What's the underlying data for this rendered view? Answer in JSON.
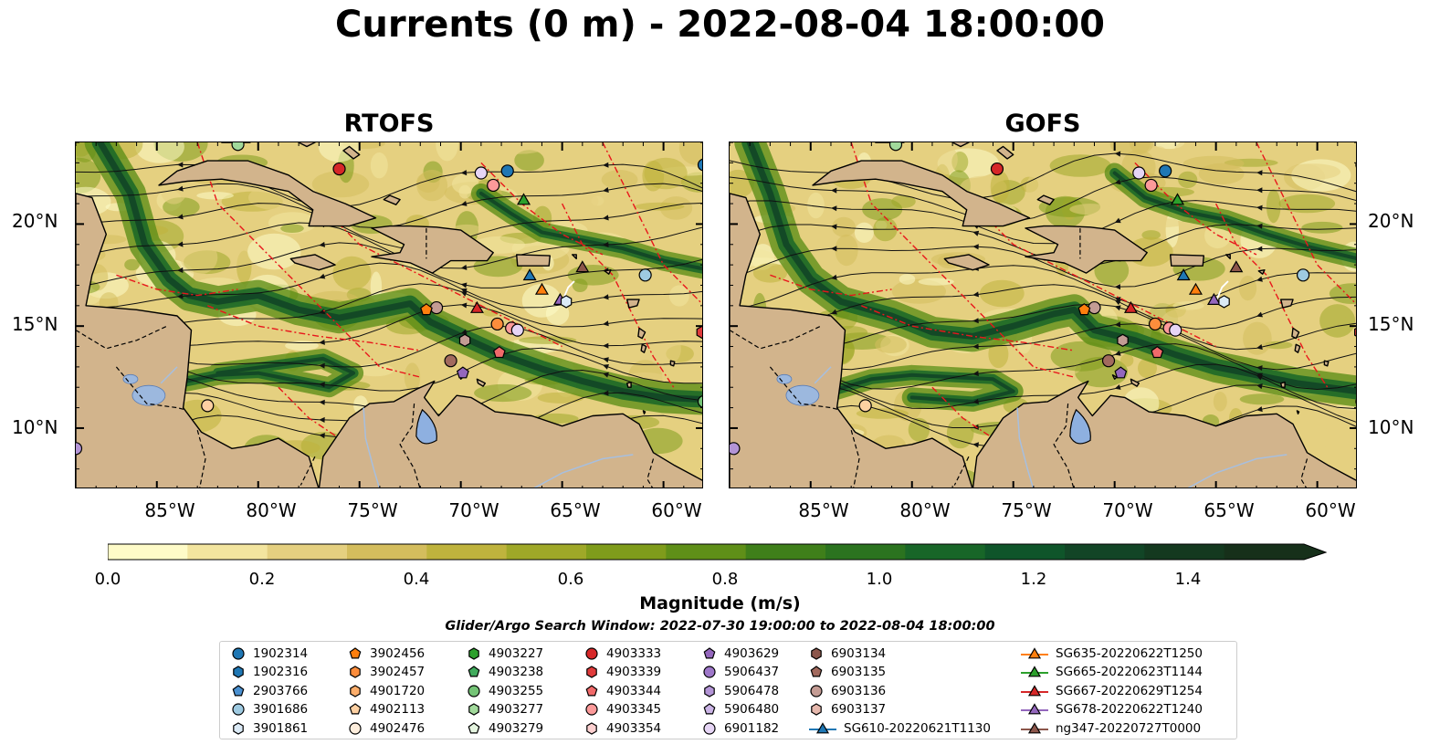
{
  "title": "Currents (0 m) - 2022-08-04 18:00:00",
  "panels": [
    {
      "title": "RTOFS"
    },
    {
      "title": "GOFS"
    }
  ],
  "lat_labels": [
    "20°N",
    "15°N",
    "10°N"
  ],
  "lon_labels": [
    "85°W",
    "80°W",
    "75°W",
    "70°W",
    "65°W",
    "60°W"
  ],
  "map_extent": {
    "lon": [
      -89,
      -58
    ],
    "lat": [
      7,
      24
    ]
  },
  "colorbar": {
    "label": "Magnitude (m/s)",
    "ticks": [
      "0.0",
      "0.2",
      "0.4",
      "0.6",
      "0.8",
      "1.0",
      "1.2",
      "1.4"
    ],
    "range": [
      0,
      1.5
    ],
    "colors": [
      "#fefbc8",
      "#f3e59f",
      "#e5d080",
      "#d4bd5d",
      "#bfb33d",
      "#9fa828",
      "#7f9c1b",
      "#5f8f18",
      "#3f7f1a",
      "#2b731f",
      "#186628",
      "#0f552a",
      "#124526",
      "#14391f",
      "#16301a"
    ],
    "extend": "max"
  },
  "search_window": "Glider/Argo Search Window: 2022-07-30 19:00:00 to 2022-08-04 18:00:00",
  "legend": {
    "columns": [
      [
        {
          "label": "1902314",
          "marker": "circle",
          "color": "#1f77b4"
        },
        {
          "label": "1902316",
          "marker": "hexagon",
          "color": "#1f77b4"
        },
        {
          "label": "2903766",
          "marker": "pentagon",
          "color": "#4a90d0"
        },
        {
          "label": "3901686",
          "marker": "circle",
          "color": "#9ecae1"
        },
        {
          "label": "3901861",
          "marker": "hexagon",
          "color": "#dbeaf6"
        }
      ],
      [
        {
          "label": "3902456",
          "marker": "pentagon",
          "color": "#ff7f0e"
        },
        {
          "label": "3902457",
          "marker": "hexagon",
          "color": "#fd8d3c"
        },
        {
          "label": "4901720",
          "marker": "hexagon",
          "color": "#fdae6b"
        },
        {
          "label": "4902113",
          "marker": "pentagon",
          "color": "#fdd0a2"
        },
        {
          "label": "4902476",
          "marker": "circle",
          "color": "#feeedd"
        }
      ],
      [
        {
          "label": "4903227",
          "marker": "hexagon",
          "color": "#2ca02c"
        },
        {
          "label": "4903238",
          "marker": "pentagon",
          "color": "#41ab5d"
        },
        {
          "label": "4903255",
          "marker": "circle",
          "color": "#74c476"
        },
        {
          "label": "4903277",
          "marker": "hexagon",
          "color": "#a1d99b"
        },
        {
          "label": "4903279",
          "marker": "pentagon",
          "color": "#e5f5e0"
        }
      ],
      [
        {
          "label": "4903333",
          "marker": "circle",
          "color": "#d62728"
        },
        {
          "label": "4903339",
          "marker": "hexagon",
          "color": "#e03b3b"
        },
        {
          "label": "4903344",
          "marker": "pentagon",
          "color": "#f16a6a"
        },
        {
          "label": "4903345",
          "marker": "circle",
          "color": "#fc9a9a"
        },
        {
          "label": "4903354",
          "marker": "hexagon",
          "color": "#fdd0d0"
        }
      ],
      [
        {
          "label": "4903629",
          "marker": "pentagon",
          "color": "#9467bd"
        },
        {
          "label": "5906437",
          "marker": "circle",
          "color": "#9e77c9"
        },
        {
          "label": "5906478",
          "marker": "hexagon",
          "color": "#b394d6"
        },
        {
          "label": "5906480",
          "marker": "pentagon",
          "color": "#cbb4e6"
        },
        {
          "label": "6901182",
          "marker": "circle",
          "color": "#e6d5f5"
        }
      ],
      [
        {
          "label": "6903134",
          "marker": "hexagon",
          "color": "#8c564b"
        },
        {
          "label": "6903135",
          "marker": "pentagon",
          "color": "#a26a5e"
        },
        {
          "label": "6903136",
          "marker": "circle",
          "color": "#c49c94"
        },
        {
          "label": "6903137",
          "marker": "hexagon",
          "color": "#e6b8ad"
        },
        {
          "label": "SG610-20220621T1130",
          "marker": "line-triangle",
          "color": "#1f77b4"
        }
      ],
      [
        {
          "label": "SG635-20220622T1250",
          "marker": "line-triangle",
          "color": "#ff7f0e"
        },
        {
          "label": "SG665-20220623T1144",
          "marker": "line-triangle",
          "color": "#2ca02c"
        },
        {
          "label": "SG667-20220629T1254",
          "marker": "line-triangle",
          "color": "#d62728"
        },
        {
          "label": "SG678-20220622T1240",
          "marker": "line-triangle",
          "color": "#9467bd"
        },
        {
          "label": "ng347-20220727T0000",
          "marker": "line-triangle",
          "color": "#8c564b"
        }
      ]
    ]
  },
  "markers": [
    {
      "lon": -76.0,
      "lat": 22.7,
      "marker": "circle",
      "color": "#d62728"
    },
    {
      "lon": -67.7,
      "lat": 22.6,
      "marker": "circle",
      "color": "#1f77b4"
    },
    {
      "lon": -69.0,
      "lat": 22.5,
      "marker": "circle",
      "color": "#e6d5f5"
    },
    {
      "lon": -68.4,
      "lat": 21.9,
      "marker": "circle",
      "color": "#fc9a9a"
    },
    {
      "lon": -66.9,
      "lat": 21.2,
      "marker": "triangle",
      "color": "#2ca02c"
    },
    {
      "lon": -81.0,
      "lat": 23.9,
      "marker": "circle",
      "color": "#a1d99b"
    },
    {
      "lon": -58.0,
      "lat": 22.9,
      "marker": "circle",
      "color": "#1f77b4"
    },
    {
      "lon": -66.6,
      "lat": 17.5,
      "marker": "triangle",
      "color": "#1f77b4"
    },
    {
      "lon": -66.0,
      "lat": 16.8,
      "marker": "triangle",
      "color": "#ff7f0e"
    },
    {
      "lon": -65.1,
      "lat": 16.3,
      "marker": "triangle",
      "color": "#9467bd"
    },
    {
      "lon": -64.8,
      "lat": 16.2,
      "marker": "hexagon",
      "color": "#dbeaf6"
    },
    {
      "lon": -64.0,
      "lat": 17.9,
      "marker": "triangle",
      "color": "#8c564b"
    },
    {
      "lon": -60.9,
      "lat": 17.5,
      "marker": "circle",
      "color": "#9ecae1"
    },
    {
      "lon": -69.2,
      "lat": 15.9,
      "marker": "triangle",
      "color": "#d62728"
    },
    {
      "lon": -71.2,
      "lat": 15.9,
      "marker": "circle",
      "color": "#c49c94"
    },
    {
      "lon": -71.7,
      "lat": 15.8,
      "marker": "pentagon",
      "color": "#ff7f0e"
    },
    {
      "lon": -68.2,
      "lat": 15.1,
      "marker": "circle",
      "color": "#fd8d3c"
    },
    {
      "lon": -67.5,
      "lat": 14.9,
      "marker": "circle",
      "color": "#fc9a9a"
    },
    {
      "lon": -67.2,
      "lat": 14.8,
      "marker": "circle",
      "color": "#e6d5f5"
    },
    {
      "lon": -69.8,
      "lat": 14.3,
      "marker": "hexagon",
      "color": "#c49c94"
    },
    {
      "lon": -68.1,
      "lat": 13.7,
      "marker": "pentagon",
      "color": "#f16a6a"
    },
    {
      "lon": -70.5,
      "lat": 13.3,
      "marker": "circle",
      "color": "#a26a5e"
    },
    {
      "lon": -69.9,
      "lat": 12.7,
      "marker": "pentagon",
      "color": "#9467bd"
    },
    {
      "lon": -58.1,
      "lat": 14.7,
      "marker": "hexagon",
      "color": "#e03b3b"
    },
    {
      "lon": -82.5,
      "lat": 11.1,
      "marker": "circle",
      "color": "#fdd0a2"
    },
    {
      "lon": -89.0,
      "lat": 9.0,
      "marker": "circle",
      "color": "#b394d6"
    },
    {
      "lon": -58.0,
      "lat": 11.3,
      "marker": "circle",
      "color": "#74c476"
    }
  ]
}
